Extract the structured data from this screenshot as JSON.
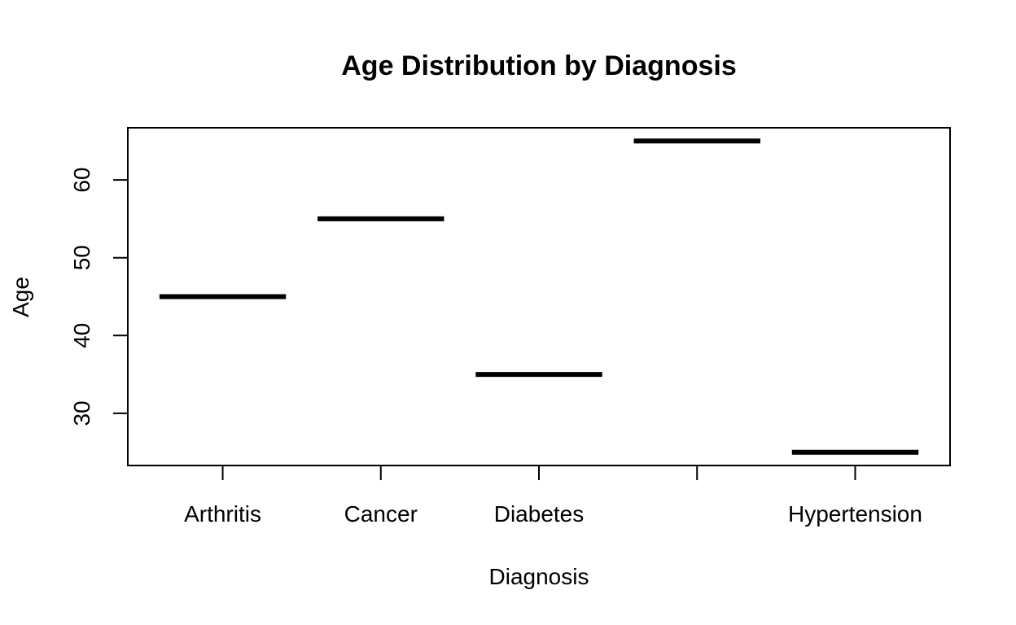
{
  "chart_data": {
    "type": "box",
    "title": "Age Distribution by Diagnosis",
    "xlabel": "Diagnosis",
    "ylabel": "Age",
    "categories": [
      "Arthritis",
      "Cancer",
      "Diabetes",
      "",
      "Hypertension"
    ],
    "values": [
      45,
      55,
      35,
      65,
      25
    ],
    "ylim": [
      23.3,
      66.7
    ],
    "yticks": [
      30,
      40,
      50,
      60
    ],
    "grid": false,
    "legend": "none",
    "line_color": "#000000"
  }
}
